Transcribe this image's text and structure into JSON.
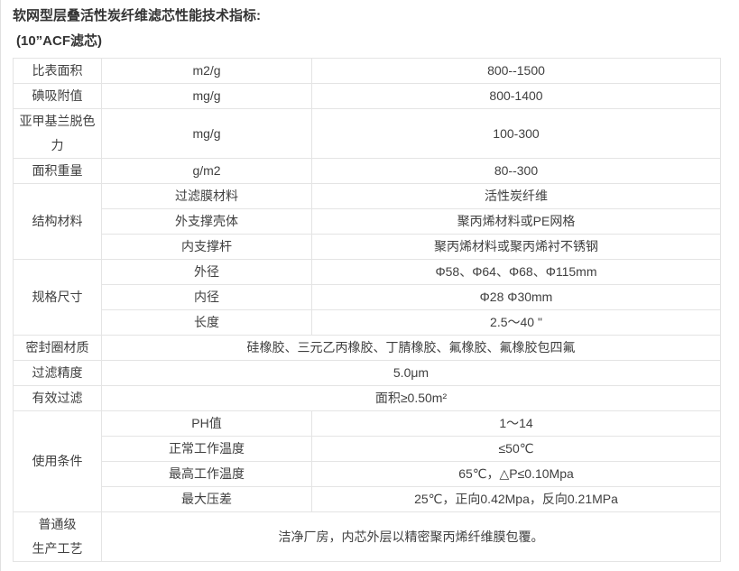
{
  "page": {
    "title": "软网型层叠活性炭纤维滤芯性能技术指标:",
    "subtitle": "(10”ACF滤芯)"
  },
  "colors": {
    "text": "#404040",
    "title": "#333333",
    "table_border": "#e4e4e4",
    "background": "#ffffff"
  },
  "table": {
    "rows": [
      {
        "cells": [
          {
            "t": "比表面积",
            "name": "spec-name-cell"
          },
          {
            "t": "m2/g",
            "name": "spec-unit-cell"
          },
          {
            "t": "800--1500",
            "name": "spec-value-cell"
          }
        ]
      },
      {
        "cells": [
          {
            "t": "碘吸附值",
            "name": "spec-name-cell"
          },
          {
            "t": "mg/g",
            "name": "spec-unit-cell"
          },
          {
            "t": "800-1400",
            "name": "spec-value-cell"
          }
        ]
      },
      {
        "cells": [
          {
            "t": "亚甲基兰脱色力",
            "name": "spec-name-cell"
          },
          {
            "t": "mg/g",
            "name": "spec-unit-cell"
          },
          {
            "t": "100-300",
            "name": "spec-value-cell"
          }
        ]
      },
      {
        "cells": [
          {
            "t": "面积重量",
            "name": "spec-name-cell"
          },
          {
            "t": "g/m2",
            "name": "spec-unit-cell"
          },
          {
            "t": "80--300",
            "name": "spec-value-cell"
          }
        ]
      },
      {
        "cells": [
          {
            "t": "结构材料",
            "name": "spec-name-cell",
            "rowspan": 3
          },
          {
            "t": "过滤膜材料",
            "name": "spec-sub-name-cell"
          },
          {
            "t": "活性炭纤维",
            "name": "spec-value-cell"
          }
        ]
      },
      {
        "cells": [
          {
            "t": "外支撑壳体",
            "name": "spec-sub-name-cell"
          },
          {
            "t": "聚丙烯材料或PE网格",
            "name": "spec-value-cell"
          }
        ]
      },
      {
        "cells": [
          {
            "t": "内支撑杆",
            "name": "spec-sub-name-cell"
          },
          {
            "t": "聚丙烯材料或聚丙烯衬不锈钢",
            "name": "spec-value-cell"
          }
        ]
      },
      {
        "cells": [
          {
            "t": "规格尺寸",
            "name": "spec-name-cell",
            "rowspan": 3
          },
          {
            "t": "外径",
            "name": "spec-sub-name-cell"
          },
          {
            "t": "Φ58、Φ64、Φ68、Φ115mm",
            "name": "spec-value-cell"
          }
        ]
      },
      {
        "cells": [
          {
            "t": "内径",
            "name": "spec-sub-name-cell"
          },
          {
            "t": "Φ28 Φ30mm",
            "name": "spec-value-cell"
          }
        ]
      },
      {
        "cells": [
          {
            "t": "长度",
            "name": "spec-sub-name-cell"
          },
          {
            "t": "2.5～40 \"",
            "name": "spec-value-cell"
          }
        ]
      },
      {
        "cells": [
          {
            "t": "密封圈材质",
            "name": "spec-name-cell"
          },
          {
            "t": "硅橡胶、三元乙丙橡胶、丁腈橡胶、氟橡胶、氟橡胶包四氟",
            "name": "spec-value-cell",
            "colspan": 2
          }
        ]
      },
      {
        "cells": [
          {
            "t": "过滤精度",
            "name": "spec-name-cell"
          },
          {
            "t": "5.0μm",
            "name": "spec-value-cell",
            "colspan": 2
          }
        ]
      },
      {
        "cells": [
          {
            "t": "有效过滤",
            "name": "spec-name-cell"
          },
          {
            "t": "面积≥0.50m²",
            "name": "spec-value-cell",
            "colspan": 2
          }
        ]
      },
      {
        "cells": [
          {
            "t": "使用条件",
            "name": "spec-name-cell",
            "rowspan": 4
          },
          {
            "t": "PH值",
            "name": "spec-sub-name-cell"
          },
          {
            "t": "1～14",
            "name": "spec-value-cell"
          }
        ]
      },
      {
        "cells": [
          {
            "t": "正常工作温度",
            "name": "spec-sub-name-cell"
          },
          {
            "t": "≤50℃",
            "name": "spec-value-cell"
          }
        ]
      },
      {
        "cells": [
          {
            "t": "最高工作温度",
            "name": "spec-sub-name-cell"
          },
          {
            "t": "65℃，△P≤0.10Mpa",
            "name": "spec-value-cell"
          }
        ]
      },
      {
        "cells": [
          {
            "t": "最大压差",
            "name": "spec-sub-name-cell"
          },
          {
            "t": "25℃，正向0.42Mpa，反向0.21MPa",
            "name": "spec-value-cell"
          }
        ]
      },
      {
        "cells": [
          {
            "t": "普通级\n生产工艺",
            "name": "spec-name-cell"
          },
          {
            "t": "洁净厂房，内芯外层以精密聚丙烯纤维膜包覆。",
            "name": "spec-value-cell",
            "colspan": 2
          }
        ]
      }
    ]
  }
}
